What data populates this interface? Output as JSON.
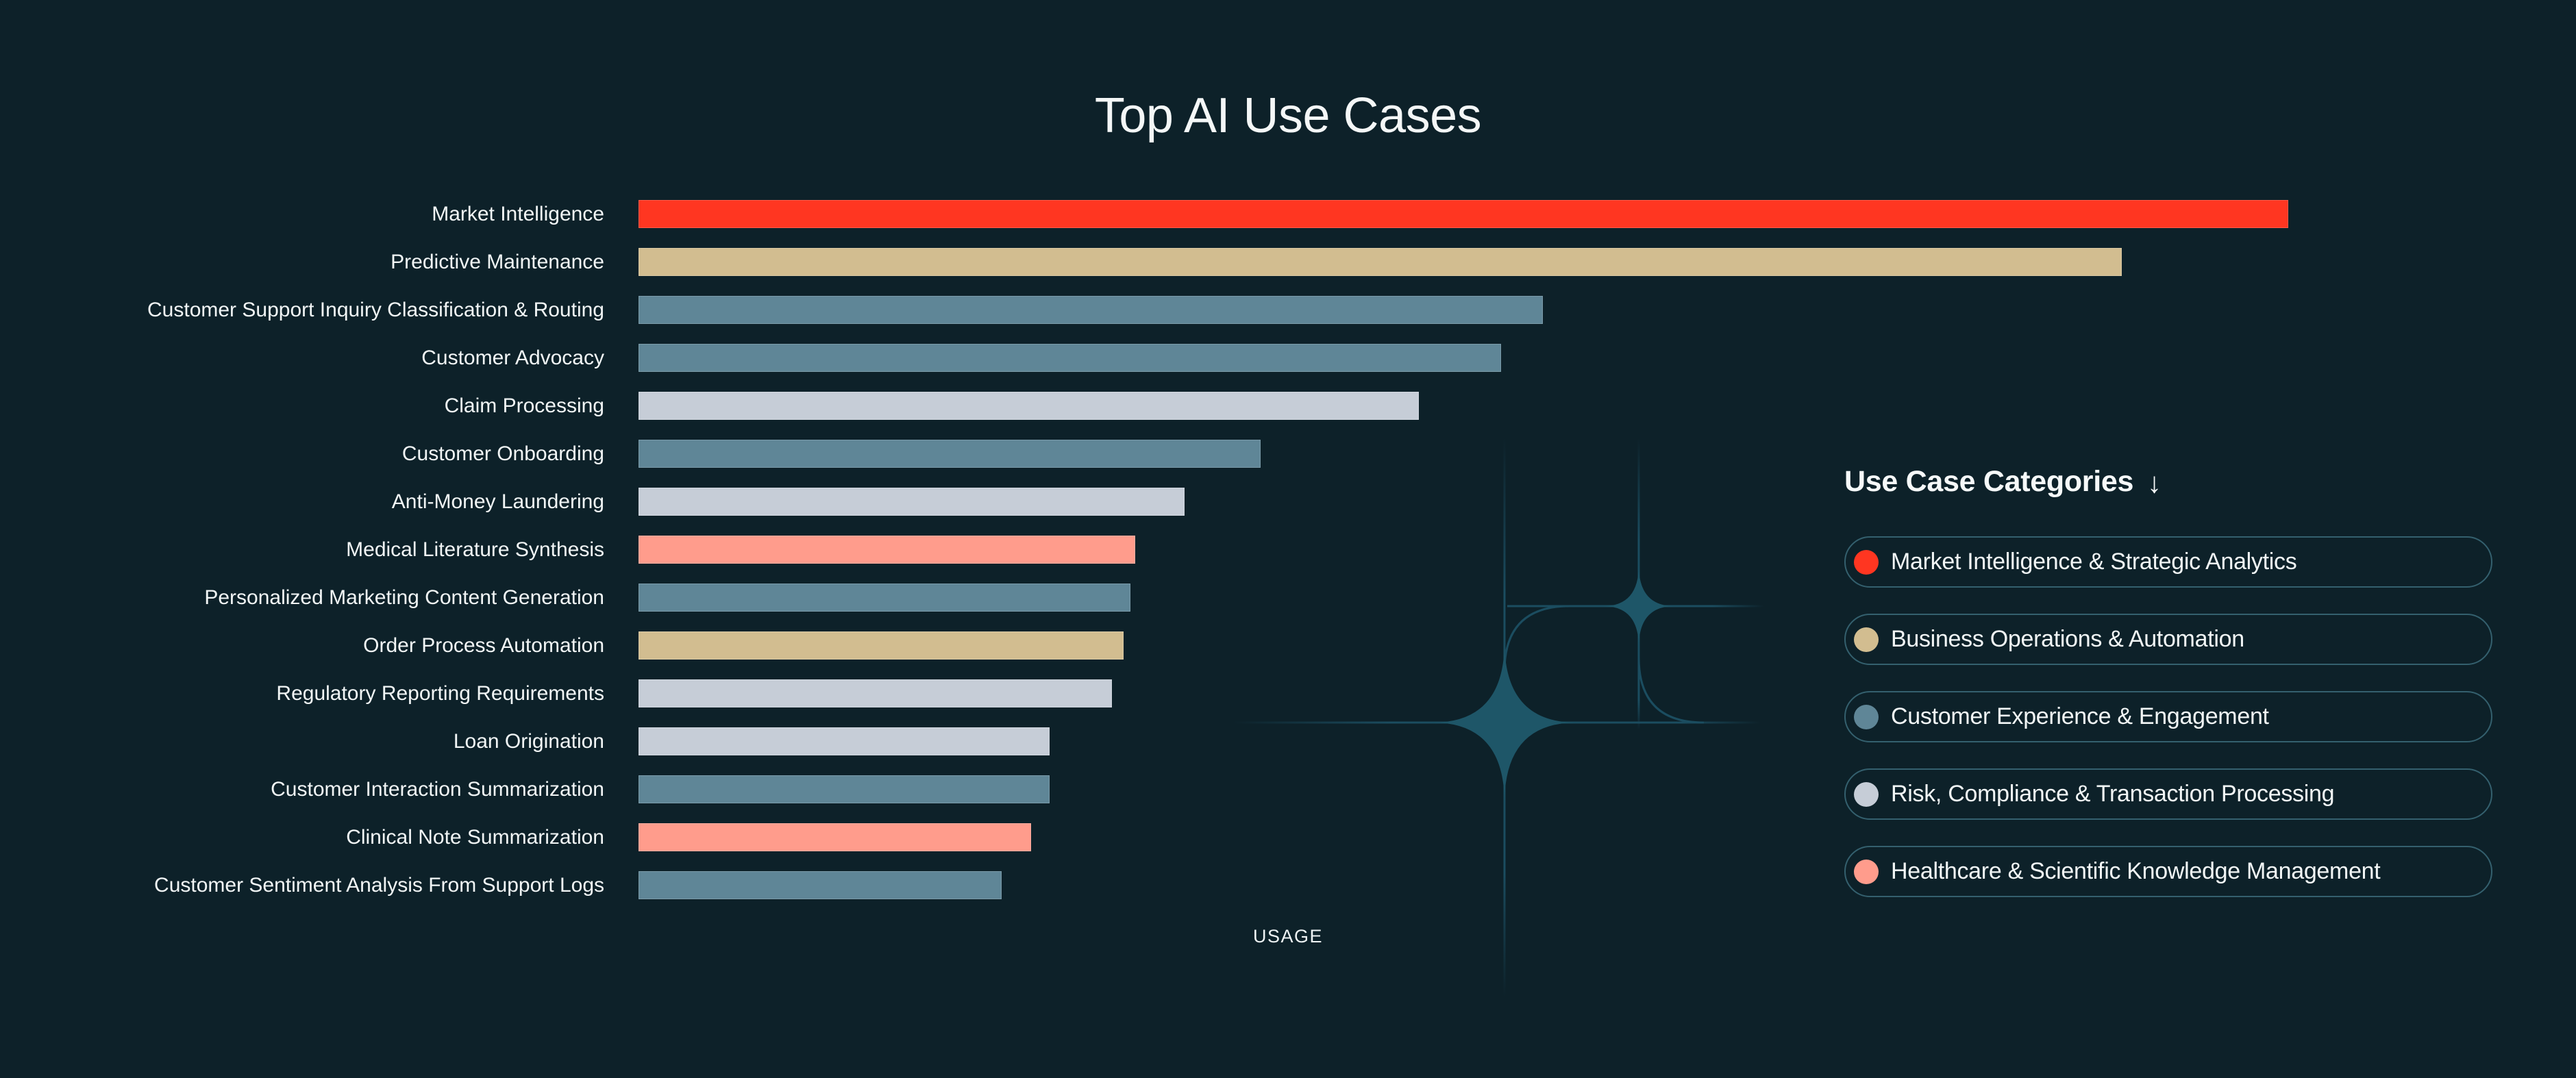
{
  "page": {
    "background_color": "#0D2129",
    "text_color": "#F2F6F6"
  },
  "chart_data": {
    "type": "bar",
    "orientation": "horizontal",
    "title": "Top AI Use Cases",
    "xlabel": "USAGE",
    "ylabel": "",
    "xlim": [
      0,
      100
    ],
    "grid": false,
    "legend_position": "right",
    "values_are": "percent of longest bar (estimated from pixel lengths; no numeric labels shown)",
    "rows": [
      {
        "label": "Market Intelligence",
        "category": "market-intelligence",
        "value": 100
      },
      {
        "label": "Predictive Maintenance",
        "category": "business-operations",
        "value": 89.9
      },
      {
        "label": "Customer Support Inquiry Classification & Routing",
        "category": "customer-experience",
        "value": 54.8
      },
      {
        "label": "Customer Advocacy",
        "category": "customer-experience",
        "value": 52.3
      },
      {
        "label": "Claim Processing",
        "category": "risk-compliance",
        "value": 47.3
      },
      {
        "label": "Customer Onboarding",
        "category": "customer-experience",
        "value": 37.7
      },
      {
        "label": "Anti-Money Laundering",
        "category": "risk-compliance",
        "value": 33.1
      },
      {
        "label": "Medical Literature Synthesis",
        "category": "healthcare-scientific",
        "value": 30.1
      },
      {
        "label": "Personalized Marketing Content Generation",
        "category": "customer-experience",
        "value": 29.8
      },
      {
        "label": "Order Process Automation",
        "category": "business-operations",
        "value": 29.4
      },
      {
        "label": "Regulatory Reporting Requirements",
        "category": "risk-compliance",
        "value": 28.7
      },
      {
        "label": "Loan Origination",
        "category": "risk-compliance",
        "value": 24.9
      },
      {
        "label": "Customer Interaction Summarization",
        "category": "customer-experience",
        "value": 24.9
      },
      {
        "label": "Clinical Note Summarization",
        "category": "healthcare-scientific",
        "value": 23.8
      },
      {
        "label": "Customer Sentiment Analysis From Support Logs",
        "category": "customer-experience",
        "value": 22.0
      }
    ]
  },
  "legend": {
    "title": "Use Case Categories",
    "arrow_icon": "↓",
    "items": [
      {
        "id": "market-intelligence",
        "label": "Market Intelligence & Strategic Analytics",
        "color": "#FF3621"
      },
      {
        "id": "business-operations",
        "label": "Business Operations & Automation",
        "color": "#D2BD90"
      },
      {
        "id": "customer-experience",
        "label": "Customer Experience & Engagement",
        "color": "#5F8697"
      },
      {
        "id": "risk-compliance",
        "label": "Risk, Compliance & Transaction Processing",
        "color": "#C6CDD7"
      },
      {
        "id": "healthcare-scientific",
        "label": "Healthcare & Scientific Knowledge Management",
        "color": "#FF9C8C"
      }
    ]
  },
  "decoration": {
    "sparkle_color": "#1E5668",
    "line_color": "#1B4D60"
  }
}
